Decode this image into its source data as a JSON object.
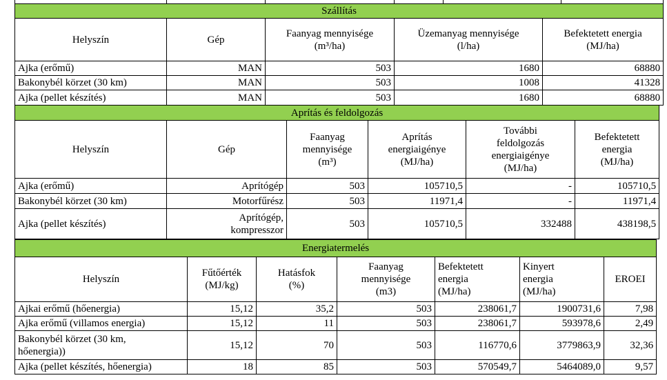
{
  "shipping": {
    "title": "Szállítás",
    "headers": [
      "Helyszín",
      "Gép",
      "Faanyag mennyisége\n(m³/ha)",
      "Üzemanyag mennyisége\n(l/ha)",
      "Befektetett energia\n(MJ/ha)"
    ],
    "rows": [
      [
        "Ajka (erőmű)",
        "MAN",
        "503",
        "1680",
        "68880"
      ],
      [
        "Bakonybél körzet (30 km)",
        "MAN",
        "503",
        "1008",
        "41328"
      ],
      [
        "Ajka (pellet készítés)",
        "MAN",
        "503",
        "1680",
        "68880"
      ]
    ]
  },
  "chipping": {
    "title": "Aprítás és feldolgozás",
    "headers": [
      "Helyszín",
      "Gép",
      "Faanyag\nmennyisége\n(m³)",
      "Aprítás\nenergiaigénye\n(MJ/ha)",
      "További\nfeldolgozás\nenergiaigénye\n(MJ/ha)",
      "Befektetett\nenergia\n(MJ/ha)"
    ],
    "rows": [
      [
        "Ajka (erőmű)",
        "Aprítógép",
        "503",
        "105710,5",
        "-",
        "105710,5"
      ],
      [
        "Bakonybél körzet (30 km)",
        "Motorfűrész",
        "503",
        "11971,4",
        "-",
        "11971,4"
      ],
      [
        "Ajka (pellet készítés)",
        "Aprítógép,\nkompresszor",
        "503",
        "105710,5",
        "332488",
        "438198,5"
      ]
    ]
  },
  "energy": {
    "title": "Energiatermelés",
    "headers": [
      "Helyszín",
      "Fűtőérték\n(MJ/kg)",
      "Hatásfok\n(%)",
      "Faanyag\nmennyisége\n(m3)",
      "Befektetett\nenergia\n(MJ/ha)",
      "Kinyert\nenergia\n(MJ/ha)",
      "EROEI"
    ],
    "rows": [
      [
        "Ajkai erőmű (hőenergia)",
        "15,12",
        "35,2",
        "503",
        "238061,7",
        "1900731,6",
        "7,98"
      ],
      [
        "Ajka erőmű (villamos energia)",
        "15,12",
        "11",
        "503",
        "238061,7",
        "593978,6",
        "2,49"
      ],
      [
        "Bakonybél körzet (30 km,\nhőenergia))",
        "15,12",
        "70",
        "503",
        "116770,6",
        "3779863,9",
        "32,36"
      ],
      [
        "Ajka (pellet készítés, hőenergia)",
        "18",
        "85",
        "503",
        "570549,7",
        "5464089,0",
        "9,57"
      ]
    ]
  }
}
